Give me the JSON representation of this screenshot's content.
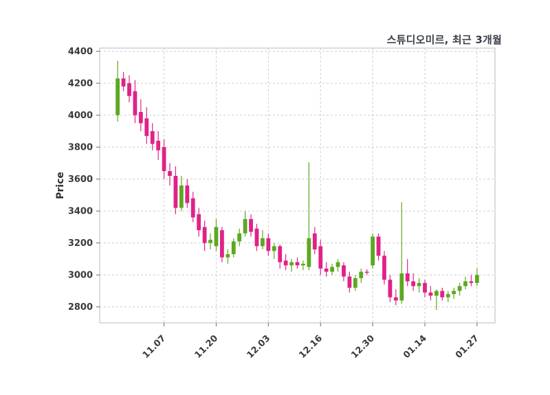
{
  "figure": {
    "background": "#ffffff"
  },
  "chart_data": {
    "type": "candlestick",
    "title": "스튜디오미르, 최근 3개월",
    "ylabel": "Price",
    "xlabel": "",
    "grid": true,
    "legend": false,
    "ylim": [
      2700,
      4420
    ],
    "yticks": [
      2800,
      3000,
      3200,
      3400,
      3600,
      3800,
      4000,
      4200,
      4400
    ],
    "xtick_labels": [
      "11.07",
      "11.20",
      "12.03",
      "12.16",
      "12.30",
      "01.14",
      "01.27"
    ],
    "up_color": "#5ca820",
    "down_color": "#e02288",
    "grid_color": "#cccccc",
    "border_color": "#c4c4c4",
    "text_color": "#3a3a3a",
    "tick_color": "#666666",
    "columns": [
      "date",
      "open",
      "high",
      "low",
      "close"
    ],
    "rows": [
      [
        "10.28",
        4000,
        4340,
        3960,
        4230
      ],
      [
        "10.29",
        4230,
        4270,
        4150,
        4180
      ],
      [
        "10.30",
        4200,
        4250,
        4080,
        4120
      ],
      [
        "10.31",
        4150,
        4220,
        3950,
        4000
      ],
      [
        "11.01",
        4020,
        4100,
        3900,
        3950
      ],
      [
        "11.04",
        3980,
        4050,
        3820,
        3870
      ],
      [
        "11.05",
        3900,
        3950,
        3780,
        3820
      ],
      [
        "11.06",
        3840,
        3900,
        3720,
        3780
      ],
      [
        "11.07",
        3800,
        3850,
        3600,
        3650
      ],
      [
        "11.08",
        3650,
        3700,
        3560,
        3620
      ],
      [
        "11.11",
        3620,
        3680,
        3380,
        3420
      ],
      [
        "11.12",
        3420,
        3620,
        3400,
        3560
      ],
      [
        "11.13",
        3560,
        3600,
        3420,
        3450
      ],
      [
        "11.14",
        3480,
        3520,
        3330,
        3360
      ],
      [
        "11.15",
        3380,
        3420,
        3240,
        3280
      ],
      [
        "11.18",
        3300,
        3340,
        3150,
        3200
      ],
      [
        "11.19",
        3200,
        3260,
        3160,
        3220
      ],
      [
        "11.20",
        3180,
        3350,
        3150,
        3300
      ],
      [
        "11.21",
        3280,
        3300,
        3080,
        3110
      ],
      [
        "11.22",
        3110,
        3160,
        3070,
        3130
      ],
      [
        "11.25",
        3130,
        3230,
        3110,
        3210
      ],
      [
        "11.26",
        3210,
        3290,
        3180,
        3260
      ],
      [
        "11.27",
        3260,
        3400,
        3240,
        3350
      ],
      [
        "11.28",
        3350,
        3380,
        3240,
        3270
      ],
      [
        "11.29",
        3290,
        3320,
        3150,
        3180
      ],
      [
        "12.02",
        3180,
        3280,
        3160,
        3230
      ],
      [
        "12.03",
        3230,
        3260,
        3120,
        3150
      ],
      [
        "12.04",
        3150,
        3200,
        3100,
        3180
      ],
      [
        "12.05",
        3180,
        3190,
        3040,
        3080
      ],
      [
        "12.06",
        3090,
        3130,
        3030,
        3060
      ],
      [
        "12.09",
        3060,
        3100,
        3020,
        3080
      ],
      [
        "12.10",
        3080,
        3110,
        3040,
        3060
      ],
      [
        "12.11",
        3060,
        3090,
        3030,
        3070
      ],
      [
        "12.12",
        3050,
        3705,
        3030,
        3230
      ],
      [
        "12.13",
        3260,
        3300,
        3130,
        3160
      ],
      [
        "12.16",
        3180,
        3220,
        3000,
        3040
      ],
      [
        "12.17",
        3040,
        3080,
        2990,
        3020
      ],
      [
        "12.18",
        3020,
        3070,
        3000,
        3050
      ],
      [
        "12.19",
        3050,
        3100,
        3020,
        3080
      ],
      [
        "12.20",
        3060,
        3080,
        2960,
        2990
      ],
      [
        "12.23",
        2990,
        3020,
        2890,
        2920
      ],
      [
        "12.24",
        2920,
        3000,
        2900,
        2980
      ],
      [
        "12.26",
        2980,
        3040,
        2950,
        3020
      ],
      [
        "12.27",
        3020,
        3035,
        3000,
        3015
      ],
      [
        "12.30",
        3060,
        3260,
        3040,
        3240
      ],
      [
        "01.02",
        3240,
        3260,
        3090,
        3120
      ],
      [
        "01.03",
        3120,
        3150,
        2940,
        2970
      ],
      [
        "01.06",
        2970,
        3000,
        2830,
        2860
      ],
      [
        "01.07",
        2860,
        2910,
        2810,
        2840
      ],
      [
        "01.08",
        2840,
        3455,
        2820,
        3010
      ],
      [
        "01.09",
        3010,
        3100,
        2930,
        2960
      ],
      [
        "01.10",
        2960,
        3010,
        2900,
        2930
      ],
      [
        "01.13",
        2930,
        2980,
        2890,
        2950
      ],
      [
        "01.14",
        2950,
        2970,
        2860,
        2890
      ],
      [
        "01.15",
        2890,
        2930,
        2840,
        2870
      ],
      [
        "01.16",
        2870,
        2910,
        2780,
        2900
      ],
      [
        "01.17",
        2900,
        2920,
        2840,
        2860
      ],
      [
        "01.20",
        2860,
        2900,
        2830,
        2880
      ],
      [
        "01.21",
        2880,
        2920,
        2850,
        2900
      ],
      [
        "01.22",
        2900,
        2950,
        2870,
        2930
      ],
      [
        "01.23",
        2930,
        2990,
        2910,
        2960
      ],
      [
        "01.24",
        2960,
        3000,
        2930,
        2950
      ],
      [
        "01.27",
        2950,
        3040,
        2930,
        3000
      ]
    ]
  }
}
